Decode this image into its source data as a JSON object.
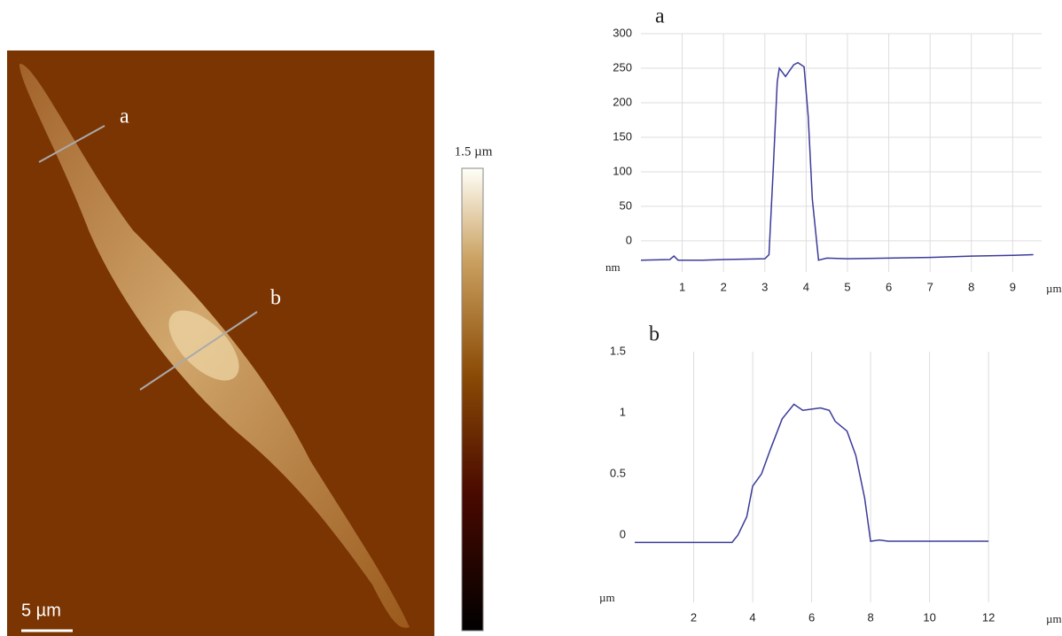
{
  "image": {
    "profile_labels": [
      "a",
      "b"
    ],
    "colorbar_label": "1.5 µm",
    "scale_bar": "5 µm"
  },
  "chart_data": [
    {
      "type": "line",
      "title": "a",
      "y_label": "nm",
      "x_label": "µm",
      "grid": "both",
      "x": [
        0,
        0.7,
        0.8,
        0.9,
        1.5,
        2,
        3.0,
        3.1,
        3.2,
        3.3,
        3.35,
        3.5,
        3.7,
        3.8,
        3.95,
        4.05,
        4.15,
        4.3,
        4.5,
        5,
        6,
        7,
        8,
        9,
        9.5
      ],
      "series": [
        {
          "name": "a",
          "color": "#3b3b9a",
          "values": [
            -28,
            -27,
            -22,
            -28,
            -28,
            -27,
            -26,
            -20,
            100,
            230,
            250,
            238,
            255,
            258,
            252,
            180,
            60,
            -28,
            -25,
            -26,
            -25,
            -24,
            -22,
            -21,
            -20
          ]
        }
      ],
      "xlim": [
        0,
        9.7
      ],
      "ylim": [
        -45,
        300
      ],
      "xticks": [
        1,
        2,
        3,
        4,
        5,
        6,
        7,
        8,
        9
      ],
      "yticks": [
        0,
        50,
        100,
        150,
        200,
        250,
        300
      ]
    },
    {
      "type": "line",
      "title": "b",
      "y_label": "µm",
      "x_label": "µm",
      "grid": "x",
      "x": [
        0,
        3.3,
        3.5,
        3.8,
        4.0,
        4.3,
        4.6,
        5.0,
        5.4,
        5.7,
        6.0,
        6.3,
        6.6,
        6.8,
        7.2,
        7.5,
        7.8,
        8.0,
        8.3,
        8.6,
        9,
        12
      ],
      "series": [
        {
          "name": "b",
          "color": "#3b3b9a",
          "values": [
            -0.06,
            -0.06,
            0.0,
            0.15,
            0.4,
            0.5,
            0.7,
            0.95,
            1.07,
            1.02,
            1.03,
            1.04,
            1.02,
            0.93,
            0.85,
            0.65,
            0.3,
            -0.05,
            -0.04,
            -0.05,
            -0.05,
            -0.05
          ]
        }
      ],
      "xlim": [
        0,
        13.8
      ],
      "ylim": [
        -0.55,
        1.5
      ],
      "xticks": [
        2,
        4,
        6,
        8,
        10,
        12
      ],
      "yticks": [
        0,
        0.5,
        1,
        1.5
      ]
    }
  ]
}
